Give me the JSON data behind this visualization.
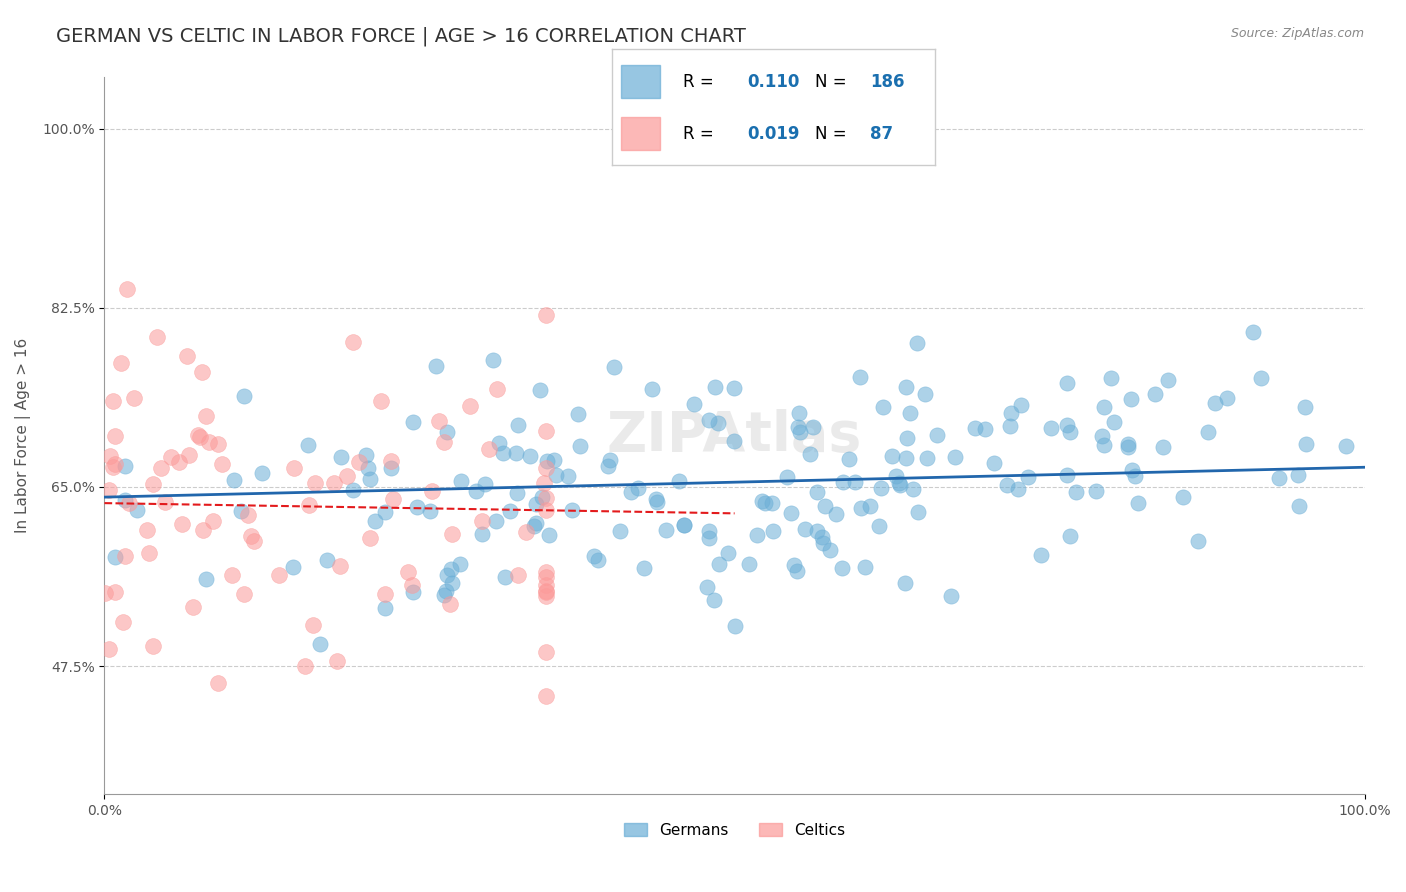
{
  "title": "GERMAN VS CELTIC IN LABOR FORCE | AGE > 16 CORRELATION CHART",
  "source_text": "Source: ZipAtlas.com",
  "ylabel": "In Labor Force | Age > 16",
  "xlabel": "",
  "xlim": [
    0.0,
    1.0
  ],
  "ylim": [
    0.35,
    1.05
  ],
  "yticks": [
    0.475,
    0.65,
    0.825,
    1.0
  ],
  "ytick_labels": [
    "47.5%",
    "65.0%",
    "82.5%",
    "100.0%"
  ],
  "xticks": [
    0.0,
    1.0
  ],
  "xtick_labels": [
    "0.0%",
    "100.0%"
  ],
  "german_color": "#6baed6",
  "celtic_color": "#fb9a99",
  "german_R": 0.11,
  "german_N": 186,
  "celtic_R": 0.019,
  "celtic_N": 87,
  "legend_R_color": "#1a6faf",
  "legend_N_color": "#1a6faf",
  "watermark": "ZIPAtlas",
  "background_color": "#ffffff",
  "grid_color": "#cccccc",
  "title_color": "#333333",
  "title_fontsize": 14,
  "axis_label_fontsize": 11,
  "tick_fontsize": 10
}
